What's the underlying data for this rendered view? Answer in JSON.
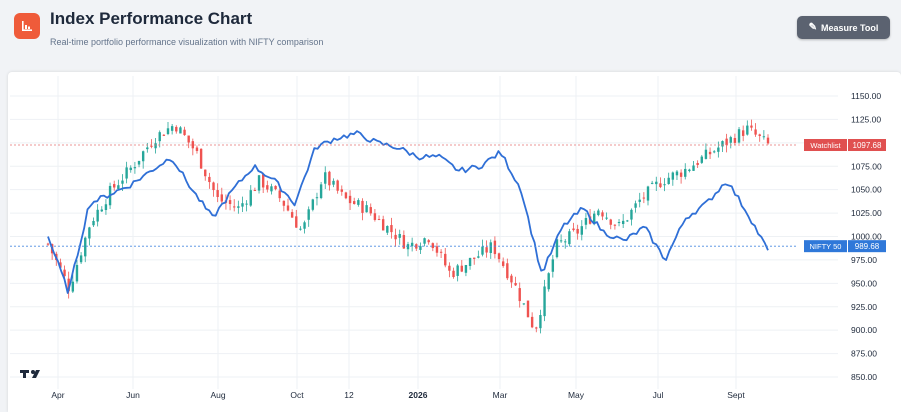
{
  "header": {
    "title": "Index Performance Chart",
    "subtitle": "Real-time portfolio performance visualization with NIFTY comparison",
    "logo_icon": "bar-chart-icon",
    "measure_tool_label": "Measure Tool",
    "measure_tool_icon": "ruler-icon"
  },
  "colors": {
    "accent": "#ef5b3a",
    "up": "#26a69a",
    "down": "#ef5350",
    "nifty_line": "#2f6fd6",
    "watchlist_tag": "#e05050",
    "nifty_tag": "#2f78d9"
  },
  "chart_data": {
    "type": "candlestick",
    "x_tick_labels": [
      "Apr",
      "Jun",
      "Aug",
      "Oct",
      "12",
      "2026",
      "Mar",
      "May",
      "Jul",
      "Sept"
    ],
    "y_tick_labels": [
      "1150.00",
      "1125.00",
      "1100.00",
      "1075.00",
      "1050.00",
      "1025.00",
      "1000.00",
      "975.00",
      "950.00",
      "925.00",
      "900.00",
      "875.00",
      "850.00"
    ],
    "ylim": [
      850,
      1150
    ],
    "grid": true,
    "series": [
      {
        "name": "Watchlist",
        "kind": "candlestick",
        "last_value": "1097.68",
        "approx_close_path": [
          992,
          945,
          1015,
          1050,
          1075,
          1105,
          1120,
          1090,
          1040,
          1030,
          1060,
          1040,
          1005,
          1065,
          1040,
          1030,
          1010,
          990,
          1000,
          960,
          975,
          990,
          950,
          900,
          990,
          1005,
          1030,
          1010,
          1040,
          1060,
          1070,
          1085,
          1100,
          1115,
          1097.68
        ]
      },
      {
        "name": "NIFTY 50",
        "kind": "line",
        "last_value": "989.68",
        "approx_path": [
          1000,
          940,
          1035,
          1045,
          1055,
          1070,
          1085,
          1050,
          1020,
          1050,
          1075,
          1060,
          1035,
          1095,
          1105,
          1110,
          1100,
          1095,
          1085,
          1085,
          1070,
          1075,
          1090,
          1050,
          960,
          1010,
          1030,
          1005,
          995,
          1010,
          975,
          1020,
          1035,
          1060,
          1025,
          985
        ]
      }
    ],
    "price_lines": [
      {
        "label": "Watchlist",
        "value": "1097.68"
      },
      {
        "label": "NIFTY 50",
        "value": "989.68"
      }
    ]
  }
}
